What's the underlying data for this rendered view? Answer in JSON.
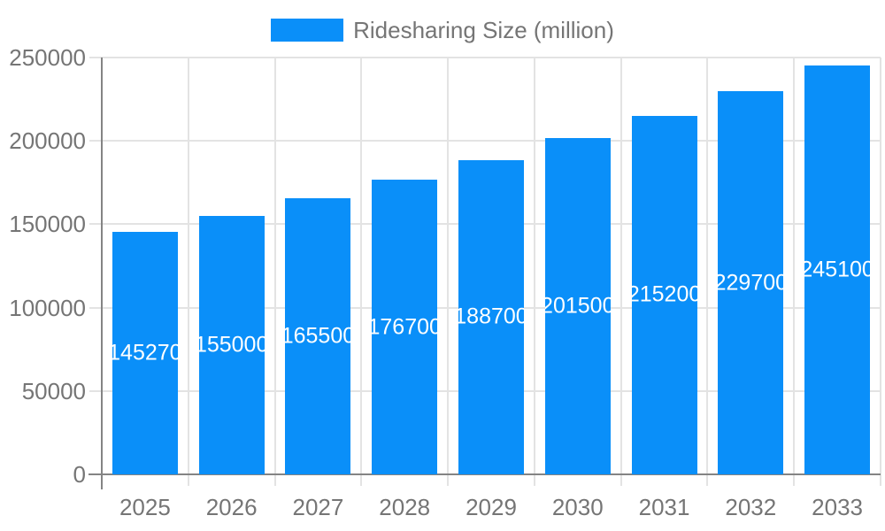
{
  "legend": {
    "label": "Ridesharing Size (million)"
  },
  "colors": {
    "bar": "#0a8ff9",
    "grid": "#e3e3e3",
    "axis": "#848484",
    "text": "#757575",
    "bar_label": "#ffffff",
    "background": "#ffffff"
  },
  "chart_data": {
    "type": "bar",
    "title": "",
    "legend": "Ridesharing Size (million)",
    "legend_position": "top-center",
    "categories": [
      "2025",
      "2026",
      "2027",
      "2028",
      "2029",
      "2030",
      "2031",
      "2032",
      "2033"
    ],
    "values": [
      145270,
      155000,
      165500,
      176700,
      188700,
      201500,
      215200,
      229700,
      245100
    ],
    "bar_labels": [
      "145270",
      "155000",
      "165500",
      "176700",
      "188700",
      "201500",
      "215200",
      "229700",
      "245100"
    ],
    "xlabel": "",
    "ylabel": "",
    "ylim": [
      0,
      250000
    ],
    "yticks": [
      0,
      50000,
      100000,
      150000,
      200000,
      250000
    ],
    "grid": "both",
    "bar_label_position": "inside-center",
    "bar_label_color": "#ffffff"
  }
}
